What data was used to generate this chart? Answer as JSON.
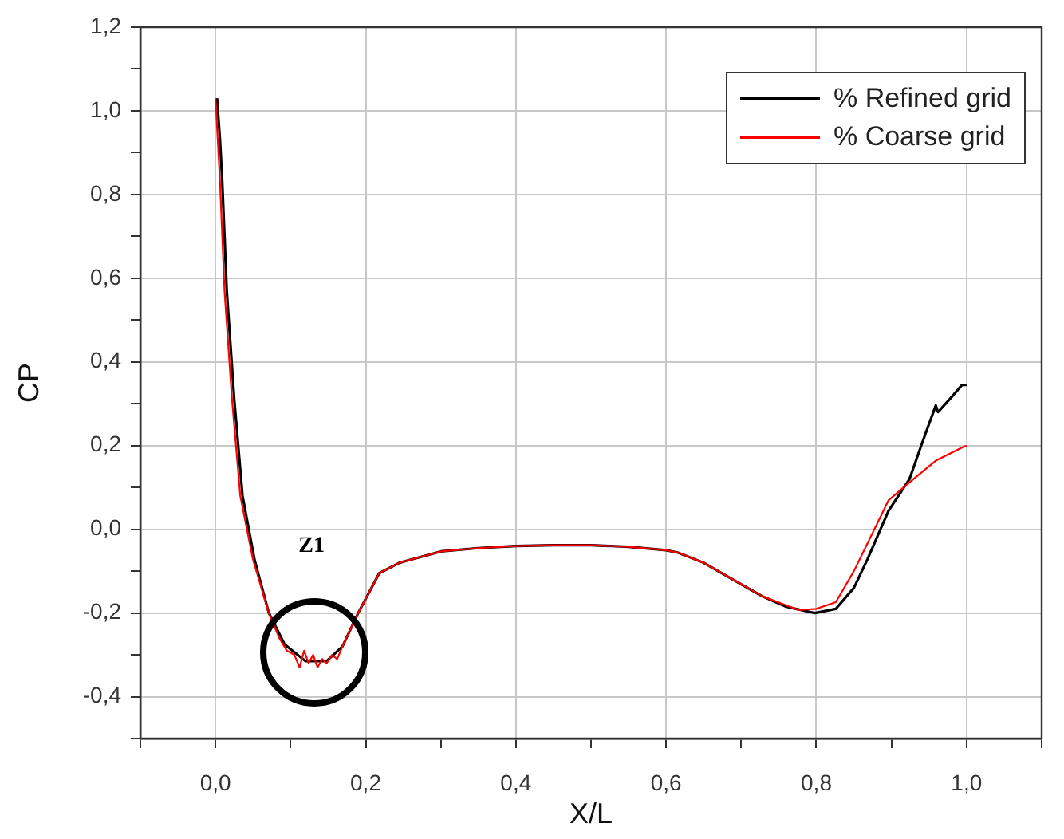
{
  "chart_data": {
    "type": "line",
    "xlabel": "X/L",
    "ylabel": "CP",
    "xlim": [
      -0.1,
      1.1
    ],
    "xticks": [
      {
        "value": -0.1,
        "label": null
      },
      {
        "value": 0,
        "label": "0,0"
      },
      {
        "value": 0.1,
        "label": null
      },
      {
        "value": 0.2,
        "label": "0,2"
      },
      {
        "value": 0.3,
        "label": null
      },
      {
        "value": 0.4,
        "label": "0,4"
      },
      {
        "value": 0.5,
        "label": null
      },
      {
        "value": 0.6,
        "label": "0,6"
      },
      {
        "value": 0.7,
        "label": null
      },
      {
        "value": 0.8,
        "label": "0,8"
      },
      {
        "value": 0.9,
        "label": null
      },
      {
        "value": 1,
        "label": "1,0"
      },
      {
        "value": 1.1,
        "label": null
      }
    ],
    "ylim": [
      -0.5,
      1.2
    ],
    "yticks": [
      {
        "value": -0.5,
        "label": null
      },
      {
        "value": -0.4,
        "label": "-0,4"
      },
      {
        "value": -0.3,
        "label": null
      },
      {
        "value": -0.2,
        "label": "-0,2"
      },
      {
        "value": -0.1,
        "label": null
      },
      {
        "value": 0,
        "label": "0,0"
      },
      {
        "value": 0.1,
        "label": null
      },
      {
        "value": 0.2,
        "label": "0,2"
      },
      {
        "value": 0.3,
        "label": null
      },
      {
        "value": 0.4,
        "label": "0,4"
      },
      {
        "value": 0.5,
        "label": null
      },
      {
        "value": 0.6,
        "label": "0,6"
      },
      {
        "value": 0.7,
        "label": null
      },
      {
        "value": 0.8,
        "label": "0,8"
      },
      {
        "value": 0.9,
        "label": null
      },
      {
        "value": 1,
        "label": "1,0"
      },
      {
        "value": 1.1,
        "label": null
      },
      {
        "value": 1.2,
        "label": "1,2"
      }
    ],
    "grid": true,
    "legend": "top right",
    "marker": "none",
    "line_style": "solid",
    "annotations": [
      "Z1"
    ],
    "series": [
      {
        "name": "% Refined grid",
        "color": "#000000",
        "x": [
          0.002,
          0.006,
          0.009,
          0.015,
          0.025,
          0.036,
          0.052,
          0.071,
          0.092,
          0.12,
          0.148,
          0.169,
          0.19,
          0.218,
          0.245,
          0.3,
          0.35,
          0.4,
          0.45,
          0.5,
          0.55,
          0.6,
          0.616,
          0.65,
          0.686,
          0.728,
          0.76,
          0.798,
          0.826,
          0.85,
          0.868,
          0.896,
          0.924,
          0.941,
          0.959,
          0.962,
          0.98,
          0.994,
          1
        ],
        "values": [
          1.03,
          0.93,
          0.83,
          0.57,
          0.31,
          0.08,
          -0.073,
          -0.2,
          -0.275,
          -0.315,
          -0.315,
          -0.28,
          -0.2,
          -0.105,
          -0.08,
          -0.053,
          -0.045,
          -0.04,
          -0.038,
          -0.038,
          -0.042,
          -0.05,
          -0.056,
          -0.08,
          -0.117,
          -0.16,
          -0.185,
          -0.2,
          -0.19,
          -0.14,
          -0.072,
          0.044,
          0.12,
          0.207,
          0.296,
          0.28,
          0.316,
          0.345,
          0.345
        ]
      },
      {
        "name": "% Coarse grid",
        "color": "#ff0000",
        "x": [
          0,
          0.003,
          0.006,
          0.012,
          0.022,
          0.033,
          0.05,
          0.071,
          0.085,
          0.095,
          0.105,
          0.112,
          0.118,
          0.124,
          0.13,
          0.136,
          0.142,
          0.148,
          0.155,
          0.162,
          0.169,
          0.19,
          0.218,
          0.245,
          0.3,
          0.35,
          0.4,
          0.45,
          0.5,
          0.55,
          0.6,
          0.616,
          0.65,
          0.686,
          0.728,
          0.777,
          0.8,
          0.826,
          0.85,
          0.868,
          0.896,
          0.924,
          0.959,
          0.997,
          1
        ],
        "values": [
          1.03,
          0.93,
          0.83,
          0.57,
          0.31,
          0.08,
          -0.073,
          -0.2,
          -0.26,
          -0.29,
          -0.3,
          -0.33,
          -0.29,
          -0.32,
          -0.3,
          -0.33,
          -0.31,
          -0.32,
          -0.3,
          -0.31,
          -0.28,
          -0.2,
          -0.105,
          -0.08,
          -0.053,
          -0.045,
          -0.04,
          -0.038,
          -0.038,
          -0.042,
          -0.05,
          -0.056,
          -0.08,
          -0.117,
          -0.16,
          -0.193,
          -0.19,
          -0.174,
          -0.1,
          -0.034,
          0.069,
          0.112,
          0.164,
          0.198,
          0.2
        ]
      }
    ]
  }
}
